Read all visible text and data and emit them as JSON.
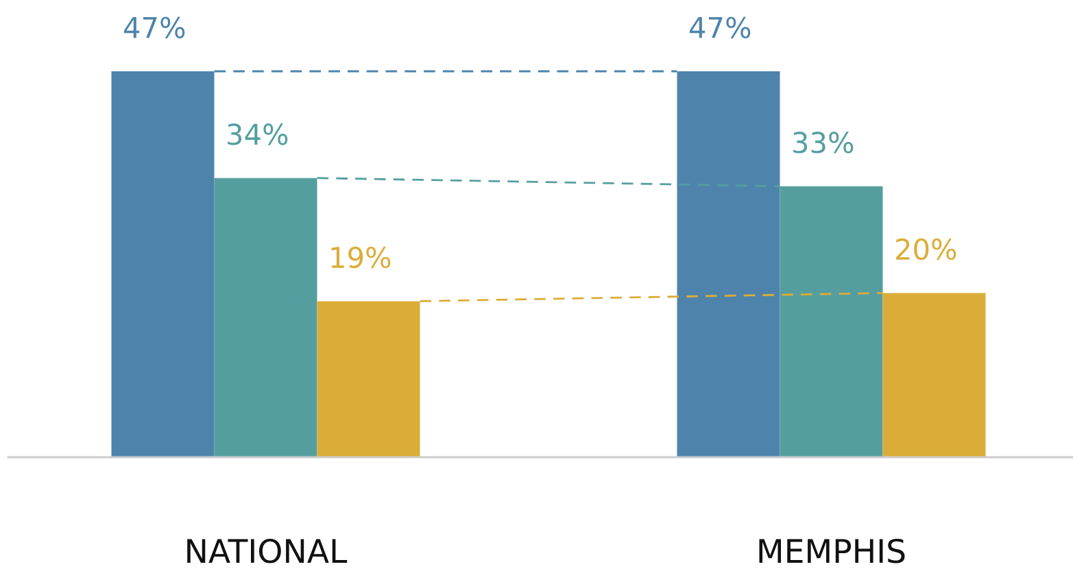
{
  "chart_data": {
    "type": "bar",
    "categories": [
      "NATIONAL",
      "MEMPHIS"
    ],
    "series": [
      {
        "color": "#4e84ab",
        "values": [
          47,
          47
        ],
        "value_labels": [
          "47%",
          "47%"
        ]
      },
      {
        "color": "#559e9f",
        "values": [
          34,
          33
        ],
        "value_labels": [
          "34%",
          "33%"
        ]
      },
      {
        "color": "#dbad38",
        "values": [
          19,
          20
        ],
        "value_labels": [
          "19%",
          "20%"
        ]
      }
    ],
    "grid": false,
    "legend": false
  }
}
